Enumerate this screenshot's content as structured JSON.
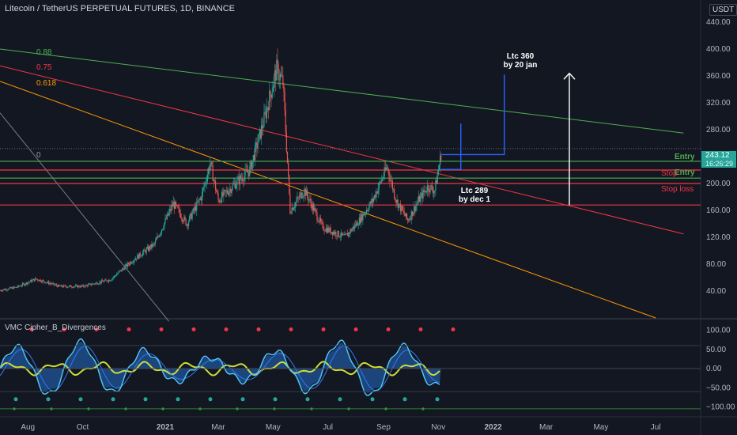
{
  "header": {
    "title": "Litecoin / TetherUS PERPETUAL FUTURES, 1D, BINANCE",
    "unit": "USDT"
  },
  "price_badge": {
    "price": "243.12",
    "countdown": "16:26:29"
  },
  "indicator": {
    "title": "VMC Cipher_B_Divergences"
  },
  "colors": {
    "background": "#131722",
    "entry_line": "#4caf50",
    "stop_line": "#f23645",
    "fib_088": "#4caf50",
    "fib_075": "#f23645",
    "fib_0618": "#ff9800",
    "projection": "#2962ff",
    "candle_up": "#26a69a",
    "candle_down": "#ef5350"
  },
  "levels": {
    "entry_label_1": "Entry",
    "entry_label_2": "Entry",
    "stop_label_1": "Stop",
    "stop_label_2": "Stop loss"
  },
  "fib": {
    "l088": "0.88",
    "l075": "0.75",
    "l0618": "0.618",
    "l0": "0"
  },
  "annotations": {
    "target_360_line1": "Ltc 360",
    "target_360_line2": "by 20 jan",
    "target_289_line1": "Ltc 289",
    "target_289_line2": "by dec 1"
  },
  "chart_data": [
    {
      "type": "candlestick",
      "title": "Litecoin / TetherUS PERPETUAL FUTURES, 1D, BINANCE",
      "x_ticks": [
        "Aug",
        "Oct",
        "2021",
        "Mar",
        "May",
        "Jul",
        "Sep",
        "Nov",
        "2022",
        "Mar",
        "May",
        "Jul"
      ],
      "y_ticks": [
        440,
        400,
        360,
        320,
        280,
        240,
        200,
        160,
        120,
        80,
        40
      ],
      "y_unit": "USDT",
      "ylim": [
        0,
        460
      ],
      "last_price": 243.12,
      "price_path": [
        {
          "date": "2020-07-01",
          "price": 41
        },
        {
          "date": "2020-07-20",
          "price": 46
        },
        {
          "date": "2020-08-10",
          "price": 58
        },
        {
          "date": "2020-09-05",
          "price": 47
        },
        {
          "date": "2020-10-01",
          "price": 47
        },
        {
          "date": "2020-11-01",
          "price": 57
        },
        {
          "date": "2020-11-25",
          "price": 85
        },
        {
          "date": "2020-12-20",
          "price": 110
        },
        {
          "date": "2021-01-10",
          "price": 170
        },
        {
          "date": "2021-01-25",
          "price": 140
        },
        {
          "date": "2021-02-10",
          "price": 180
        },
        {
          "date": "2021-02-20",
          "price": 230
        },
        {
          "date": "2021-03-01",
          "price": 175
        },
        {
          "date": "2021-03-20",
          "price": 200
        },
        {
          "date": "2021-04-05",
          "price": 220
        },
        {
          "date": "2021-04-20",
          "price": 290
        },
        {
          "date": "2021-05-05",
          "price": 370
        },
        {
          "date": "2021-05-12",
          "price": 350
        },
        {
          "date": "2021-05-20",
          "price": 160
        },
        {
          "date": "2021-06-05",
          "price": 190
        },
        {
          "date": "2021-06-25",
          "price": 135
        },
        {
          "date": "2021-07-20",
          "price": 120
        },
        {
          "date": "2021-08-05",
          "price": 145
        },
        {
          "date": "2021-08-20",
          "price": 175
        },
        {
          "date": "2021-09-05",
          "price": 225
        },
        {
          "date": "2021-09-15",
          "price": 175
        },
        {
          "date": "2021-09-28",
          "price": 145
        },
        {
          "date": "2021-10-10",
          "price": 175
        },
        {
          "date": "2021-10-20",
          "price": 195
        },
        {
          "date": "2021-10-28",
          "price": 190
        },
        {
          "date": "2021-11-04",
          "price": 243.12
        }
      ],
      "horizontal_levels": [
        {
          "name": "Entry",
          "price": 233
        },
        {
          "name": "Entry",
          "price": 208
        },
        {
          "name": "Stop",
          "price": 220
        },
        {
          "name": "Stop loss",
          "price": 200
        },
        {
          "name": "Stop loss",
          "price": 168
        },
        {
          "name": "0",
          "price": 252
        }
      ],
      "trendlines": [
        {
          "name": "0.88",
          "from": {
            "date": "2020-07-01",
            "price": 400
          },
          "to": {
            "date": "2022-08-01",
            "price": 275
          }
        },
        {
          "name": "0.75",
          "from": {
            "date": "2020-07-01",
            "price": 375
          },
          "to": {
            "date": "2022-08-01",
            "price": 125
          }
        },
        {
          "name": "0.618",
          "from": {
            "date": "2020-07-01",
            "price": 352
          },
          "to": {
            "date": "2022-07-01",
            "price": 0
          }
        }
      ],
      "targets": [
        {
          "label": "Ltc 289 by dec 1",
          "price": 289
        },
        {
          "label": "Ltc 360 by 20 jan",
          "price": 360
        }
      ]
    },
    {
      "type": "area",
      "title": "VMC Cipher_B_Divergences",
      "y_ticks": [
        100,
        50,
        0,
        -50,
        -100
      ],
      "ylim": [
        -115,
        115
      ]
    }
  ]
}
